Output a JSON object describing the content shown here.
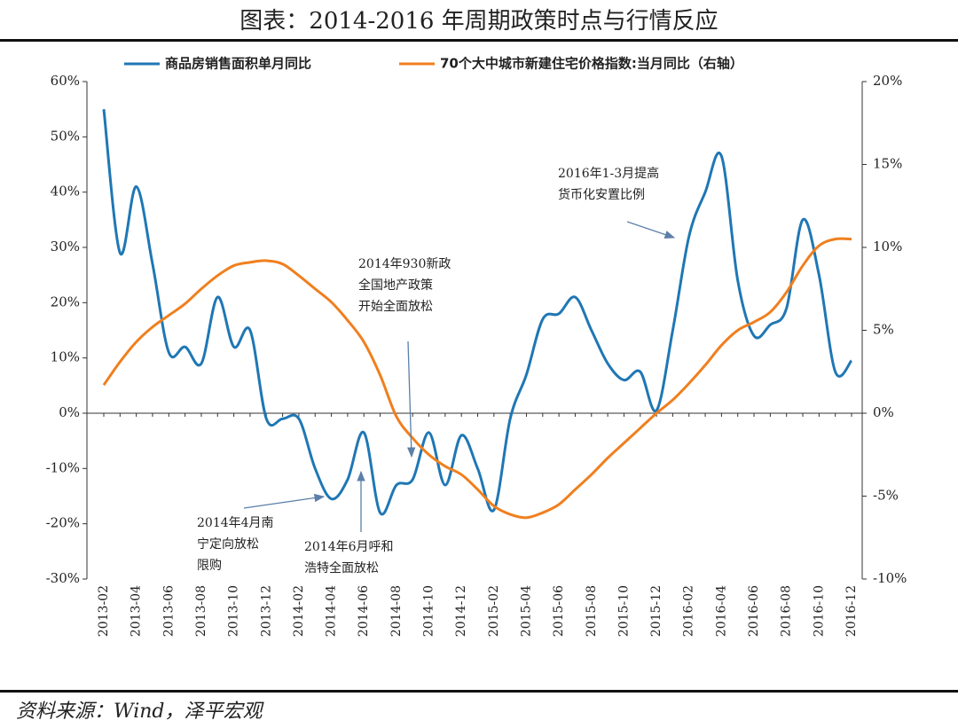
{
  "chart_data": {
    "type": "line",
    "title": "图表：2014-2016 年周期政策时点与行情反应",
    "source": "资料来源：Wind，泽平宏观",
    "categories": [
      "2013-02",
      null,
      "2013-04",
      null,
      "2013-06",
      null,
      "2013-08",
      null,
      "2013-10",
      null,
      "2013-12",
      null,
      "2014-02",
      null,
      "2014-04",
      null,
      "2014-06",
      null,
      "2014-08",
      null,
      "2014-10",
      null,
      "2014-12",
      null,
      "2015-02",
      null,
      "2015-04",
      null,
      "2015-06",
      null,
      "2015-08",
      null,
      "2015-10",
      null,
      "2015-12",
      null,
      "2016-02",
      null,
      "2016-04",
      null,
      "2016-06",
      null,
      "2016-08",
      null,
      "2016-10",
      null,
      "2016-12"
    ],
    "series": [
      {
        "name": "商品房销售面积单月同比",
        "color": "#1f77b4",
        "axis": "y",
        "values": [
          55,
          29,
          41,
          27,
          11,
          12,
          9,
          21,
          12,
          15,
          -1,
          -1,
          -1,
          -10,
          -15.5,
          -12,
          -3.5,
          -18,
          -13,
          -12,
          -3.5,
          -13,
          -4,
          -10,
          -17.5,
          -1,
          7,
          17,
          18,
          21,
          15,
          9,
          6,
          7.5,
          0.5,
          15,
          32,
          40,
          46.5,
          24,
          14,
          16,
          19,
          35,
          25,
          7.5,
          9.5
        ]
      },
      {
        "name": "70个大中城市新建住宅价格指数:当月同比（右轴）",
        "color": "#f07f1e",
        "axis": "y2",
        "values": [
          1.7,
          3.1,
          4.3,
          5.2,
          5.9,
          6.6,
          7.5,
          8.3,
          8.9,
          9.1,
          9.2,
          9.0,
          8.3,
          7.5,
          6.7,
          5.6,
          4.3,
          2.3,
          -0.2,
          -1.5,
          -2.5,
          -3.2,
          -3.7,
          -4.6,
          -5.6,
          -6.1,
          -6.3,
          -6.0,
          -5.5,
          -4.6,
          -3.7,
          -2.7,
          -1.8,
          -0.9,
          0,
          0.8,
          1.8,
          2.9,
          4.1,
          5.0,
          5.5,
          6.1,
          7.3,
          8.9,
          10.1,
          10.5,
          10.5
        ]
      }
    ],
    "ylim": [
      -30,
      60
    ],
    "yticks": [
      {
        "value": -30,
        "label": "-30%"
      },
      {
        "value": -20,
        "label": "-20%"
      },
      {
        "value": -10,
        "label": "-10%"
      },
      {
        "value": 0,
        "label": "0%"
      },
      {
        "value": 10,
        "label": "10%"
      },
      {
        "value": 20,
        "label": "20%"
      },
      {
        "value": 30,
        "label": "30%"
      },
      {
        "value": 40,
        "label": "40%"
      },
      {
        "value": 50,
        "label": "50%"
      },
      {
        "value": 60,
        "label": "60%"
      }
    ],
    "y2lim": [
      -10,
      20
    ],
    "y2ticks": [
      {
        "value": -10,
        "label": "-10%"
      },
      {
        "value": -5,
        "label": "-5%"
      },
      {
        "value": 0,
        "label": "0%"
      },
      {
        "value": 5,
        "label": "5%"
      },
      {
        "value": 10,
        "label": "10%"
      },
      {
        "value": 15,
        "label": "15%"
      },
      {
        "value": 20,
        "label": "20%"
      }
    ],
    "legend": "top",
    "annotations": [
      {
        "lines": [
          "2014年930新政",
          "全国地产政策",
          "开始全面放松"
        ]
      },
      {
        "lines": [
          "2014年4月南",
          "宁定向放松",
          "限购"
        ]
      },
      {
        "lines": [
          "2014年6月呼和",
          "浩特全面放松"
        ]
      },
      {
        "lines": [
          "2016年1-3月提高",
          "货币化安置比例"
        ]
      }
    ]
  }
}
